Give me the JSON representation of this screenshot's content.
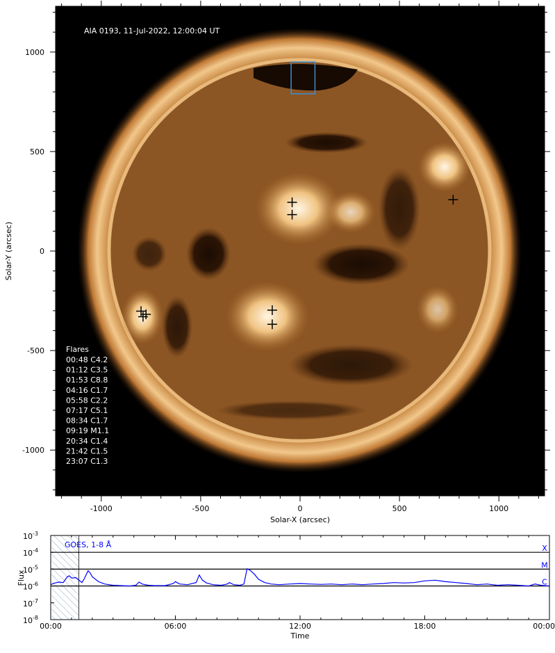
{
  "solar_image": {
    "caption": "AIA 0193, 11-Jul-2022, 12:00:04 UT",
    "xlabel": "Solar-X (arcsec)",
    "ylabel": "Solar-Y (arcsec)",
    "x_range": [
      -1230,
      1230
    ],
    "y_range": [
      -1230,
      1230
    ],
    "x_ticks": [
      -1000,
      -500,
      0,
      500,
      1000
    ],
    "y_ticks": [
      -1000,
      -500,
      0,
      500,
      1000
    ],
    "x_tick_labels": [
      "-1000",
      "-500",
      "0",
      "500",
      "1000"
    ],
    "y_tick_labels": [
      "-1000",
      "-500",
      "0",
      "500",
      "1000"
    ],
    "flare_markers": [
      {
        "x": -40,
        "y": 245
      },
      {
        "x": -40,
        "y": 183
      },
      {
        "x": 770,
        "y": 258
      },
      {
        "x": -140,
        "y": -297
      },
      {
        "x": -140,
        "y": -368
      },
      {
        "x": -800,
        "y": -302
      },
      {
        "x": -775,
        "y": -318
      },
      {
        "x": -790,
        "y": -330
      }
    ],
    "box": {
      "x0": -45,
      "x1": 75,
      "y0": 790,
      "y1": 950,
      "color": "#3a8fd6"
    }
  },
  "flares": {
    "heading": "Flares",
    "items": [
      "00:48 C4.2",
      "01:12 C3.5",
      "01:53 C8.8",
      "04:16 C1.7",
      "05:58 C2.2",
      "07:17 C5.1",
      "08:34 C1.7",
      "09:19 M1.1",
      "20:34 C1.4",
      "21:42 C1.5",
      "23:07 C1.3"
    ]
  },
  "chart_data": {
    "type": "line",
    "title": "GOES, 1-8 Å",
    "xlabel": "Time",
    "ylabel": "Flux",
    "scale": "log",
    "xlim": [
      0,
      24
    ],
    "ylim": [
      1e-08,
      0.001
    ],
    "x_ticks": [
      0,
      6,
      12,
      18,
      24
    ],
    "x_tick_labels": [
      "00:00",
      "06:00",
      "12:00",
      "18:00",
      "00:00"
    ],
    "y_ticks": [
      {
        "base": "10",
        "exp": "-8",
        "value": 1e-08
      },
      {
        "base": "10",
        "exp": "-7",
        "value": 1e-07
      },
      {
        "base": "10",
        "exp": "-6",
        "value": 1e-06
      },
      {
        "base": "10",
        "exp": "-5",
        "value": 1e-05
      },
      {
        "base": "10",
        "exp": "-4",
        "value": 0.0001
      },
      {
        "base": "10",
        "exp": "-3",
        "value": 0.001
      }
    ],
    "class_levels": [
      {
        "label": "X",
        "value": 0.0001
      },
      {
        "label": "M",
        "value": 1e-05
      },
      {
        "label": "C",
        "value": 1e-06
      }
    ],
    "hatched_interval": [
      0.05,
      1.35
    ],
    "series": [
      {
        "color": "#0000ff",
        "x": [
          0.0,
          0.2,
          0.4,
          0.6,
          0.8,
          0.9,
          1.0,
          1.1,
          1.2,
          1.3,
          1.4,
          1.5,
          1.6,
          1.7,
          1.8,
          1.9,
          2.0,
          2.3,
          2.6,
          3.0,
          3.4,
          3.8,
          4.1,
          4.25,
          4.4,
          4.7,
          5.0,
          5.5,
          5.9,
          6.0,
          6.2,
          6.6,
          7.0,
          7.15,
          7.3,
          7.5,
          7.8,
          8.2,
          8.5,
          8.6,
          8.8,
          9.1,
          9.3,
          9.45,
          9.6,
          9.8,
          10.0,
          10.3,
          10.6,
          11.0,
          11.5,
          12.0,
          12.5,
          13.0,
          13.5,
          14.0,
          14.5,
          15.0,
          15.5,
          16.0,
          16.5,
          17.0,
          17.5,
          18.0,
          18.5,
          19.0,
          19.5,
          20.0,
          20.5,
          21.0,
          21.5,
          22.0,
          22.5,
          23.0,
          23.3,
          23.6,
          24.0
        ],
        "y": [
          1.2e-06,
          1.5e-06,
          1.7e-06,
          1.6e-06,
          3.5e-06,
          4e-06,
          3e-06,
          3e-06,
          3.2e-06,
          2.6e-06,
          2e-06,
          1.6e-06,
          2.5e-06,
          4.5e-06,
          8e-06,
          6e-06,
          3.5e-06,
          1.8e-06,
          1.3e-06,
          1.1e-06,
          1.05e-06,
          1e-06,
          1.1e-06,
          1.7e-06,
          1.3e-06,
          1.1e-06,
          1.05e-06,
          1.05e-06,
          1.4e-06,
          1.8e-06,
          1.3e-06,
          1.2e-06,
          1.6e-06,
          4.5e-06,
          2.2e-06,
          1.5e-06,
          1.2e-06,
          1.1e-06,
          1.3e-06,
          1.6e-06,
          1.2e-06,
          1.1e-06,
          1.3e-06,
          1.05e-05,
          8.5e-06,
          5e-06,
          2.5e-06,
          1.6e-06,
          1.3e-06,
          1.2e-06,
          1.3e-06,
          1.4e-06,
          1.3e-06,
          1.25e-06,
          1.3e-06,
          1.2e-06,
          1.3e-06,
          1.2e-06,
          1.3e-06,
          1.4e-06,
          1.6e-06,
          1.5e-06,
          1.6e-06,
          2e-06,
          2.2e-06,
          1.8e-06,
          1.6e-06,
          1.4e-06,
          1.2e-06,
          1.3e-06,
          1.1e-06,
          1.2e-06,
          1.1e-06,
          1e-06,
          1.3e-06,
          1.1e-06,
          1e-06
        ]
      }
    ]
  }
}
